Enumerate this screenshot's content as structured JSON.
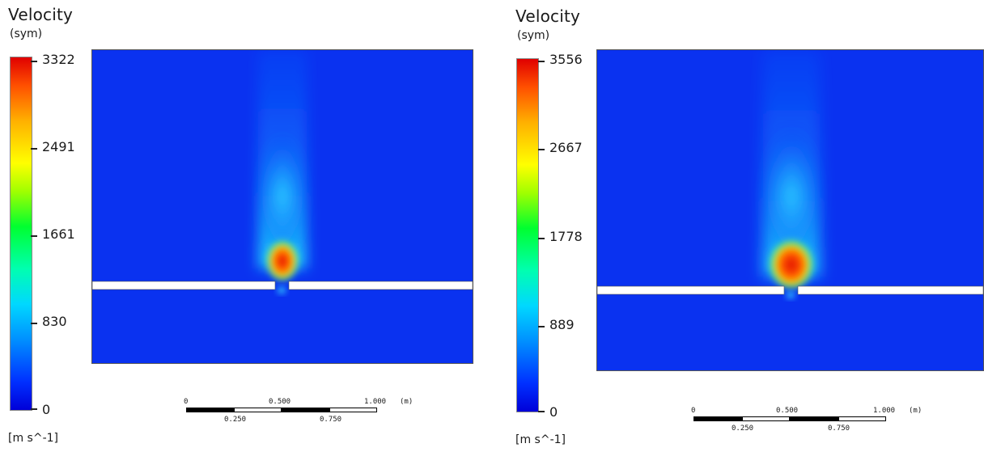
{
  "panels": [
    {
      "legend": {
        "title": "Velocity",
        "subtitle": "(sym)",
        "ticks": [
          "3322",
          "2491",
          "1661",
          "830",
          "0"
        ],
        "units": "[m  s^-1]"
      },
      "scale": {
        "top_labels": [
          "0",
          "0.500",
          "1.000"
        ],
        "unit": "(m)",
        "bottom_labels": [
          "0.250",
          "0.750"
        ]
      }
    },
    {
      "legend": {
        "title": "Velocity",
        "subtitle": "(sym)",
        "ticks": [
          "3556",
          "2667",
          "1778",
          "889",
          "0"
        ],
        "units": "[m  s^-1]"
      },
      "scale": {
        "top_labels": [
          "0",
          "0.500",
          "1.000"
        ],
        "unit": "(m)",
        "bottom_labels": [
          "0.250",
          "0.750"
        ]
      }
    }
  ],
  "colors": {
    "background_field": "#0a32f0",
    "plate": "#ffffff",
    "jet_core": "#ff3000"
  }
}
